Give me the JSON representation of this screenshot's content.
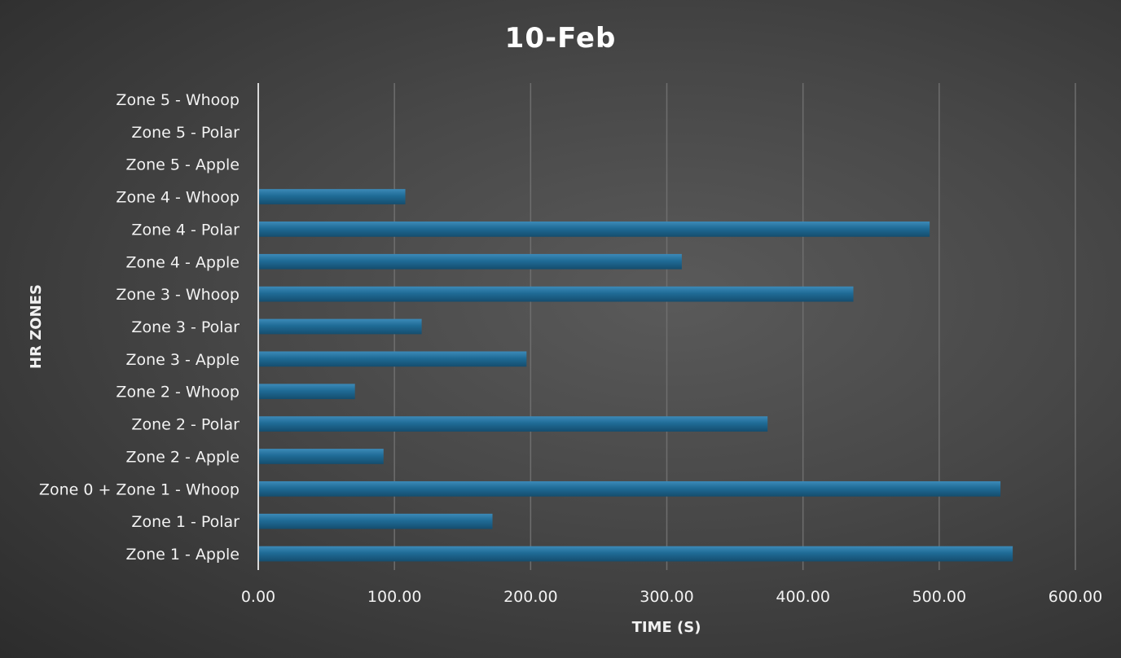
{
  "chart_data": {
    "type": "bar",
    "orientation": "horizontal",
    "title": "10-Feb",
    "xlabel": "TIME (S)",
    "ylabel": "HR ZONES",
    "xlim": [
      0,
      600
    ],
    "xticks": [
      0,
      100,
      200,
      300,
      400,
      500,
      600
    ],
    "xtick_labels": [
      "0.00",
      "100.00",
      "200.00",
      "300.00",
      "400.00",
      "500.00",
      "600.00"
    ],
    "grid": "vertical",
    "legend": "none",
    "bar_color": "#1f6b96",
    "categories": [
      "Zone 1 - Apple",
      "Zone 1 - Polar",
      "Zone 0 + Zone 1 - Whoop",
      "Zone 2 - Apple",
      "Zone 2 - Polar",
      "Zone 2 - Whoop",
      "Zone 3 - Apple",
      "Zone 3 - Polar",
      "Zone 3 - Whoop",
      "Zone 4 - Apple",
      "Zone 4 - Polar",
      "Zone 4 - Whoop",
      "Zone 5 - Apple",
      "Zone 5 - Polar",
      "Zone 5 - Whoop"
    ],
    "values": [
      554,
      172,
      545,
      92,
      374,
      71,
      197,
      120,
      437,
      311,
      493,
      108,
      0,
      0,
      0
    ]
  }
}
